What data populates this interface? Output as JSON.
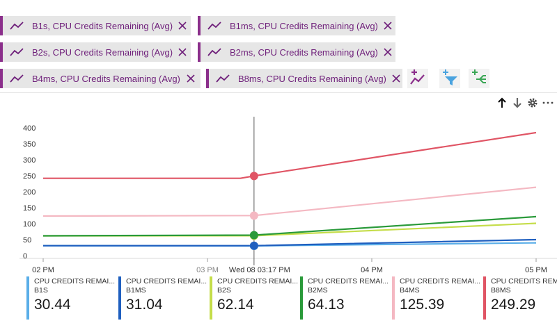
{
  "filters": [
    {
      "label": "B1s, CPU Credits Remaining (Avg)"
    },
    {
      "label": "B1ms, CPU Credits Remaining (Avg)"
    },
    {
      "label": "B2s, CPU Credits Remaining (Avg)"
    },
    {
      "label": "B2ms, CPU Credits Remaining (Avg)"
    },
    {
      "label": "B4ms, CPU Credits Remaining (Avg)"
    },
    {
      "label": "B8ms, CPU Credits Remaining (Avg)"
    }
  ],
  "colors": {
    "pill_accent": "#8b2f8b",
    "pill_text": "#6e1f7a",
    "add_metric_icon": "#8b2f8b",
    "add_filter_icon": "#4aa3df",
    "apply_splitting_icon": "#3aa655"
  },
  "icons": {
    "metric": "line-chart-icon",
    "close": "close-icon",
    "add_metric": "add-metric-icon",
    "add_filter": "add-filter-icon",
    "apply_splitting": "apply-splitting-icon",
    "move_up": "arrow-up-icon",
    "move_down": "arrow-down-icon",
    "settings": "gear-icon",
    "more": "more-icon"
  },
  "chart_data": {
    "type": "line",
    "x": [
      "02 PM",
      "03 PM",
      "Wed 08 03:17 PM",
      "04 PM",
      "05 PM"
    ],
    "x_minutes": [
      0,
      60,
      77,
      120,
      180
    ],
    "yticks": [
      0,
      50,
      100,
      150,
      200,
      250,
      300,
      350,
      400
    ],
    "ylim": [
      0,
      400
    ],
    "cursor_label": "Wed 08 03:17 PM",
    "cursor_minute": 77,
    "grid": false,
    "series": [
      {
        "name": "B1S",
        "color": "#5aaee8",
        "points": [
          [
            0,
            31
          ],
          [
            77,
            30.44
          ],
          [
            180,
            40
          ]
        ]
      },
      {
        "name": "B1MS",
        "color": "#1f5fbf",
        "points": [
          [
            0,
            31
          ],
          [
            77,
            31.04
          ],
          [
            180,
            50
          ]
        ]
      },
      {
        "name": "B2S",
        "color": "#c5dd4a",
        "points": [
          [
            0,
            62
          ],
          [
            77,
            62.14
          ],
          [
            180,
            101
          ]
        ]
      },
      {
        "name": "B2MS",
        "color": "#2a9a3a",
        "points": [
          [
            0,
            62
          ],
          [
            77,
            64.13
          ],
          [
            180,
            122
          ]
        ]
      },
      {
        "name": "B4MS",
        "color": "#f4b8c2",
        "points": [
          [
            0,
            124
          ],
          [
            77,
            125.39
          ],
          [
            180,
            214
          ]
        ]
      },
      {
        "name": "B8MS",
        "color": "#e05565",
        "points": [
          [
            0,
            242
          ],
          [
            72,
            242
          ],
          [
            77,
            249.29
          ],
          [
            180,
            385
          ]
        ]
      }
    ]
  },
  "legend": [
    {
      "metric": "CPU CREDITS REMAI...",
      "name": "B1S",
      "value": "30.44",
      "color": "#5aaee8"
    },
    {
      "metric": "CPU CREDITS REMAI...",
      "name": "B1MS",
      "value": "31.04",
      "color": "#1f5fbf"
    },
    {
      "metric": "CPU CREDITS REMAI...",
      "name": "B2S",
      "value": "62.14",
      "color": "#c5dd4a"
    },
    {
      "metric": "CPU CREDITS REMAI...",
      "name": "B2MS",
      "value": "64.13",
      "color": "#2a9a3a"
    },
    {
      "metric": "CPU CREDITS REMAI...",
      "name": "B4MS",
      "value": "125.39",
      "color": "#f4b8c2"
    },
    {
      "metric": "CPU CREDITS REMAI...",
      "name": "B8MS",
      "value": "249.29",
      "color": "#e05565"
    }
  ]
}
